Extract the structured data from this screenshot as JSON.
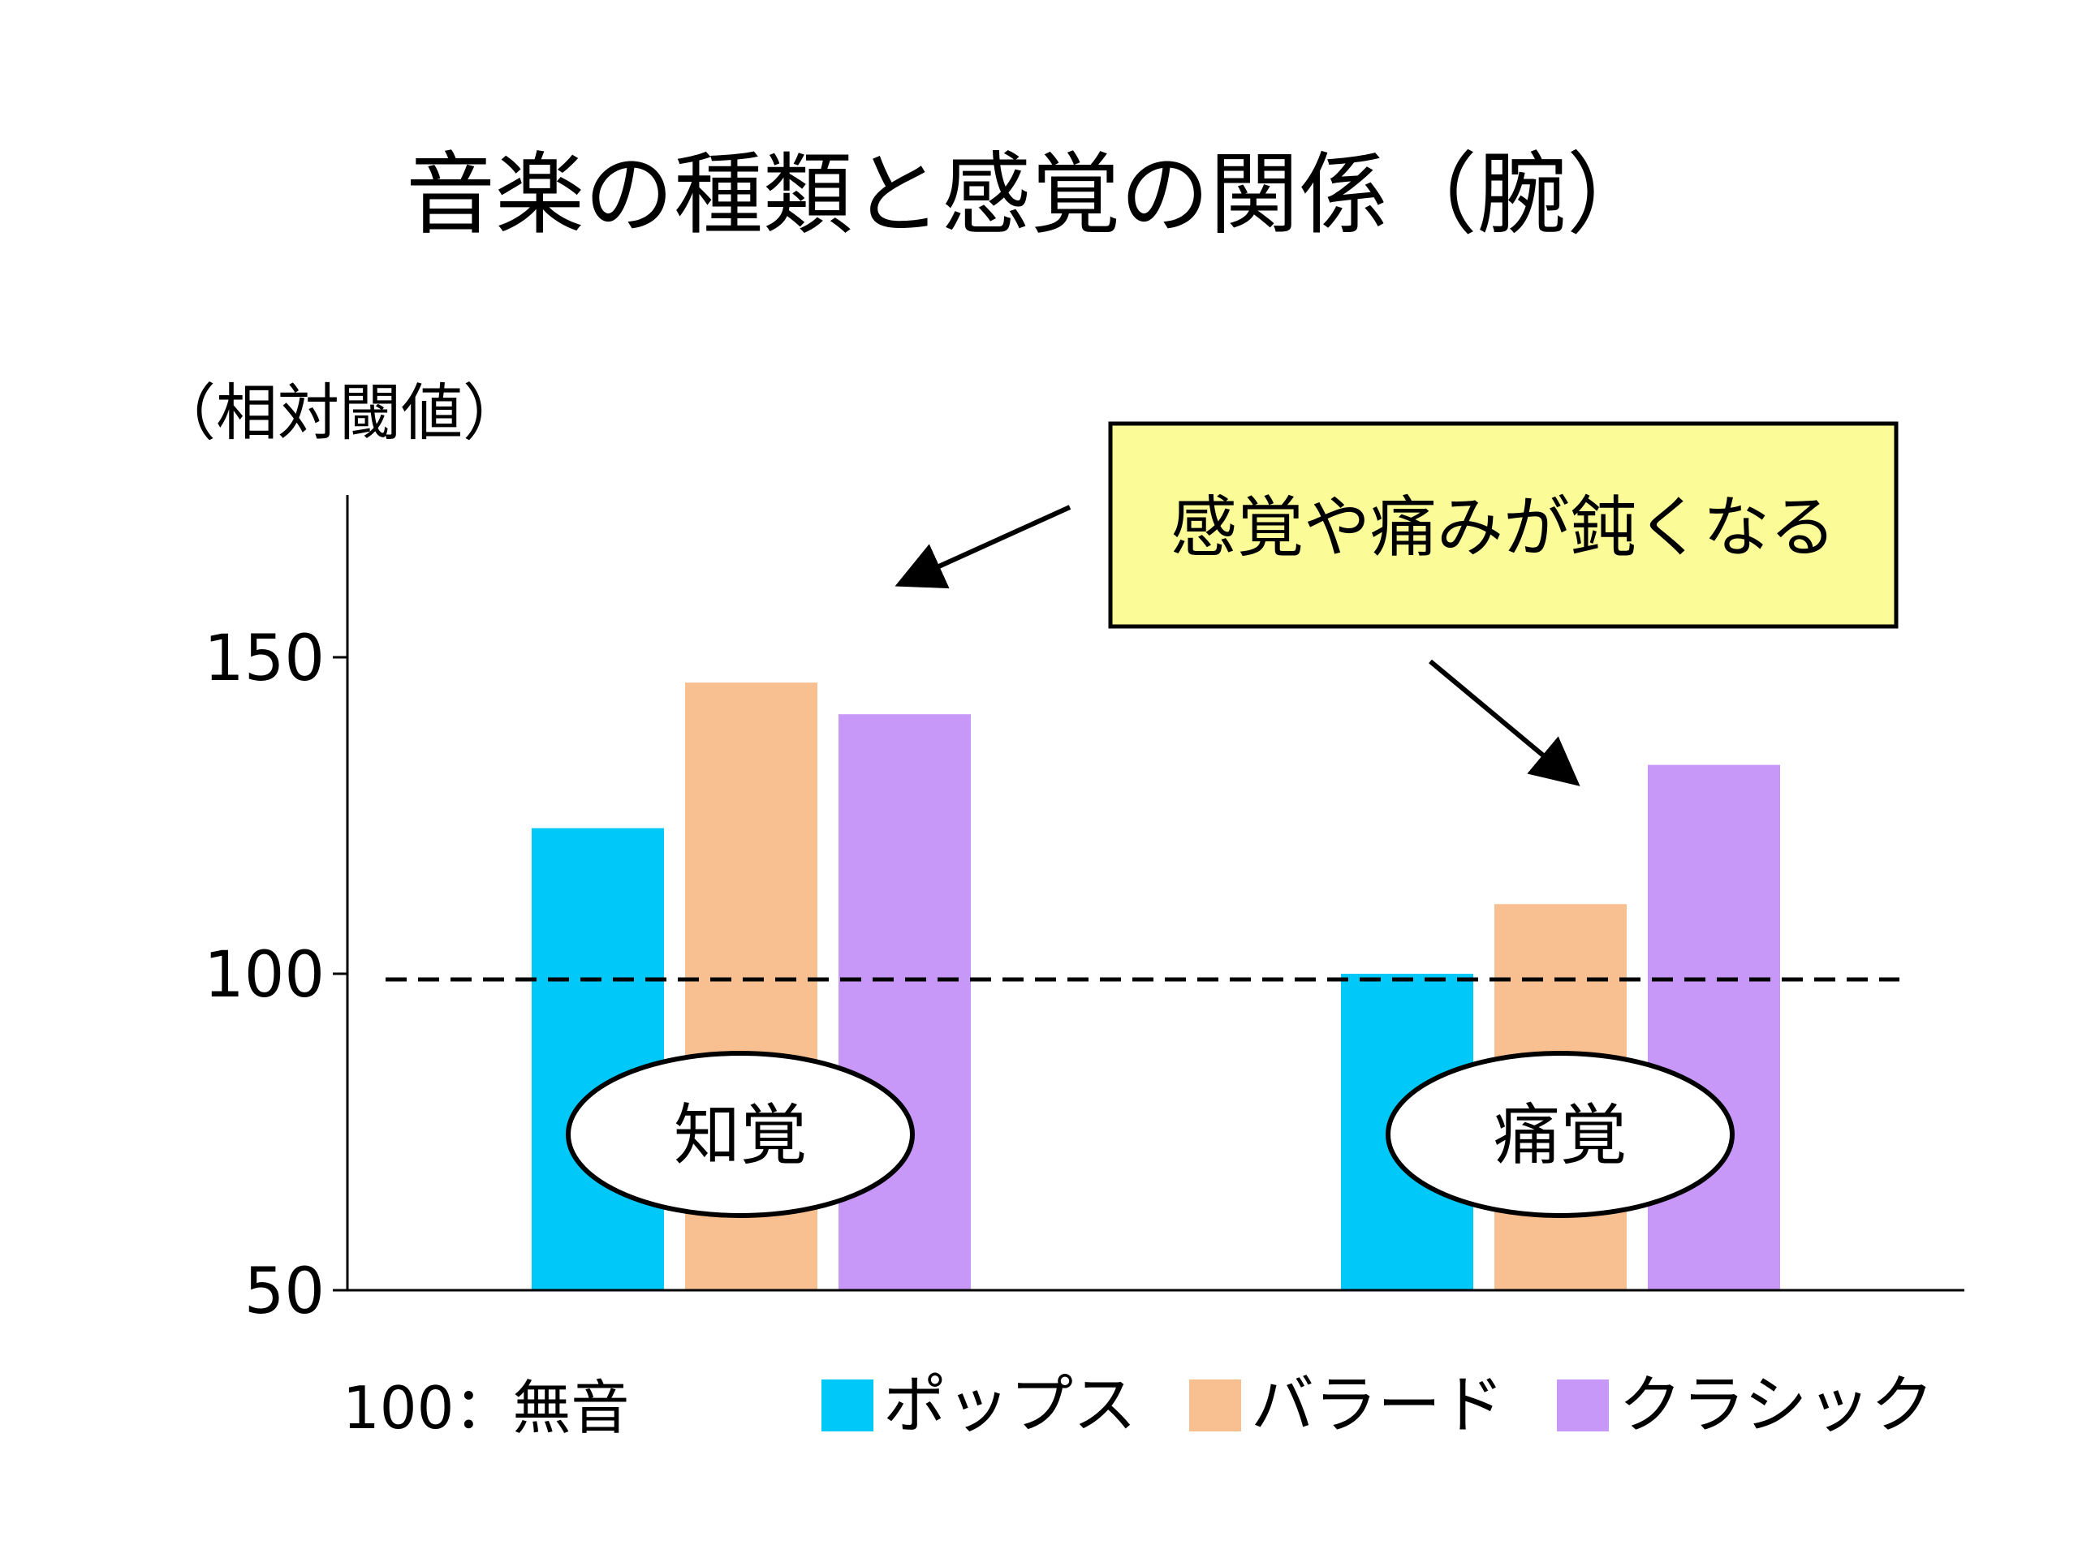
{
  "chart_data": {
    "type": "bar",
    "title": "音楽の種類と感覚の関係（腕）",
    "ylabel": "（相対閾値）",
    "ylim": [
      50,
      175
    ],
    "yticks": [
      "50",
      "100",
      "150"
    ],
    "ytick_values": [
      50,
      100,
      150
    ],
    "categories": [
      "知覚",
      "痛覚"
    ],
    "series": [
      {
        "name": "ポップス",
        "color": "#00c8f8",
        "values": [
          123,
          100
        ]
      },
      {
        "name": "バラード",
        "color": "#f8c090",
        "values": [
          146,
          111
        ]
      },
      {
        "name": "クラシック",
        "color": "#c898f8",
        "values": [
          141,
          133
        ]
      }
    ],
    "reference_line": {
      "value": 100,
      "label": "100：無音"
    },
    "annotation": "感覚や痛みが鈍くなる",
    "annotation_color": "#fbfb98",
    "legend_position": "bottom-right"
  }
}
